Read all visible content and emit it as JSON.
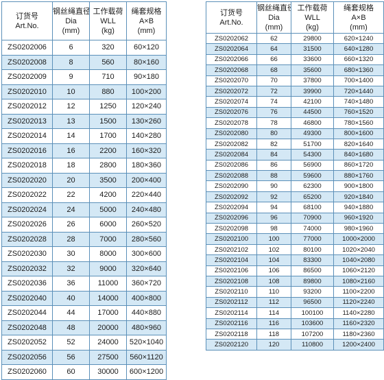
{
  "headers": {
    "code_cn": "订货号",
    "code_en": "Art.No.",
    "dia_cn": "钢丝绳直径",
    "dia_en": "Dia",
    "dia_unit": "(mm)",
    "wll_cn": "工作载荷",
    "wll_en": "WLL",
    "wll_unit": "(kg)",
    "size_cn": "绳套规格",
    "size_en": "A×B",
    "size_unit": "(mm)"
  },
  "left_rows": [
    [
      "ZS0202006",
      "6",
      "320",
      "60×120"
    ],
    [
      "ZS0202008",
      "8",
      "560",
      "80×160"
    ],
    [
      "ZS0202009",
      "9",
      "710",
      "90×180"
    ],
    [
      "ZS0202010",
      "10",
      "880",
      "100×200"
    ],
    [
      "ZS0202012",
      "12",
      "1250",
      "120×240"
    ],
    [
      "ZS0202013",
      "13",
      "1500",
      "130×260"
    ],
    [
      "ZS0202014",
      "14",
      "1700",
      "140×280"
    ],
    [
      "ZS0202016",
      "16",
      "2200",
      "160×320"
    ],
    [
      "ZS0202018",
      "18",
      "2800",
      "180×360"
    ],
    [
      "ZS0202020",
      "20",
      "3500",
      "200×400"
    ],
    [
      "ZS0202022",
      "22",
      "4200",
      "220×440"
    ],
    [
      "ZS0202024",
      "24",
      "5000",
      "240×480"
    ],
    [
      "ZS0202026",
      "26",
      "6000",
      "260×520"
    ],
    [
      "ZS0202028",
      "28",
      "7000",
      "280×560"
    ],
    [
      "ZS0202030",
      "30",
      "8000",
      "300×600"
    ],
    [
      "ZS0202032",
      "32",
      "9000",
      "320×640"
    ],
    [
      "ZS0202036",
      "36",
      "11000",
      "360×720"
    ],
    [
      "ZS0202040",
      "40",
      "14000",
      "400×800"
    ],
    [
      "ZS0202044",
      "44",
      "17000",
      "440×880"
    ],
    [
      "ZS0202048",
      "48",
      "20000",
      "480×960"
    ],
    [
      "ZS0202052",
      "52",
      "24000",
      "520×1040"
    ],
    [
      "ZS0202056",
      "56",
      "27500",
      "560×1120"
    ],
    [
      "ZS0202060",
      "60",
      "30000",
      "600×1200"
    ]
  ],
  "right_rows": [
    [
      "ZS0202062",
      "62",
      "29800",
      "620×1240"
    ],
    [
      "ZS0202064",
      "64",
      "31500",
      "640×1280"
    ],
    [
      "ZS0202066",
      "66",
      "33600",
      "660×1320"
    ],
    [
      "ZS0202068",
      "68",
      "35600",
      "680×1360"
    ],
    [
      "ZS0202070",
      "70",
      "37800",
      "700×1400"
    ],
    [
      "ZS0202072",
      "72",
      "39900",
      "720×1440"
    ],
    [
      "ZS0202074",
      "74",
      "42100",
      "740×1480"
    ],
    [
      "ZS0202076",
      "76",
      "44500",
      "760×1520"
    ],
    [
      "ZS0202078",
      "78",
      "46800",
      "780×1560"
    ],
    [
      "ZS0202080",
      "80",
      "49300",
      "800×1600"
    ],
    [
      "ZS0202082",
      "82",
      "51700",
      "820×1640"
    ],
    [
      "ZS0202084",
      "84",
      "54300",
      "840×1680"
    ],
    [
      "ZS0202086",
      "86",
      "56900",
      "860×1720"
    ],
    [
      "ZS0202088",
      "88",
      "59600",
      "880×1760"
    ],
    [
      "ZS0202090",
      "90",
      "62300",
      "900×1800"
    ],
    [
      "ZS0202092",
      "92",
      "65200",
      "920×1840"
    ],
    [
      "ZS0202094",
      "94",
      "68100",
      "940×1880"
    ],
    [
      "ZS0202096",
      "96",
      "70900",
      "960×1920"
    ],
    [
      "ZS0202098",
      "98",
      "74000",
      "980×1960"
    ],
    [
      "ZS0202100",
      "100",
      "77000",
      "1000×2000"
    ],
    [
      "ZS0202102",
      "102",
      "80100",
      "1020×2040"
    ],
    [
      "ZS0202104",
      "104",
      "83300",
      "1040×2080"
    ],
    [
      "ZS0202106",
      "106",
      "86500",
      "1060×2120"
    ],
    [
      "ZS0202108",
      "108",
      "89800",
      "1080×2160"
    ],
    [
      "ZS0202110",
      "110",
      "93200",
      "1100×2200"
    ],
    [
      "ZS0202112",
      "112",
      "96500",
      "1120×2240"
    ],
    [
      "ZS0202114",
      "114",
      "100100",
      "1140×2280"
    ],
    [
      "ZS0202116",
      "116",
      "103600",
      "1160×2320"
    ],
    [
      "ZS0202118",
      "118",
      "107200",
      "1180×2360"
    ],
    [
      "ZS0202120",
      "120",
      "110800",
      "1200×2400"
    ]
  ]
}
